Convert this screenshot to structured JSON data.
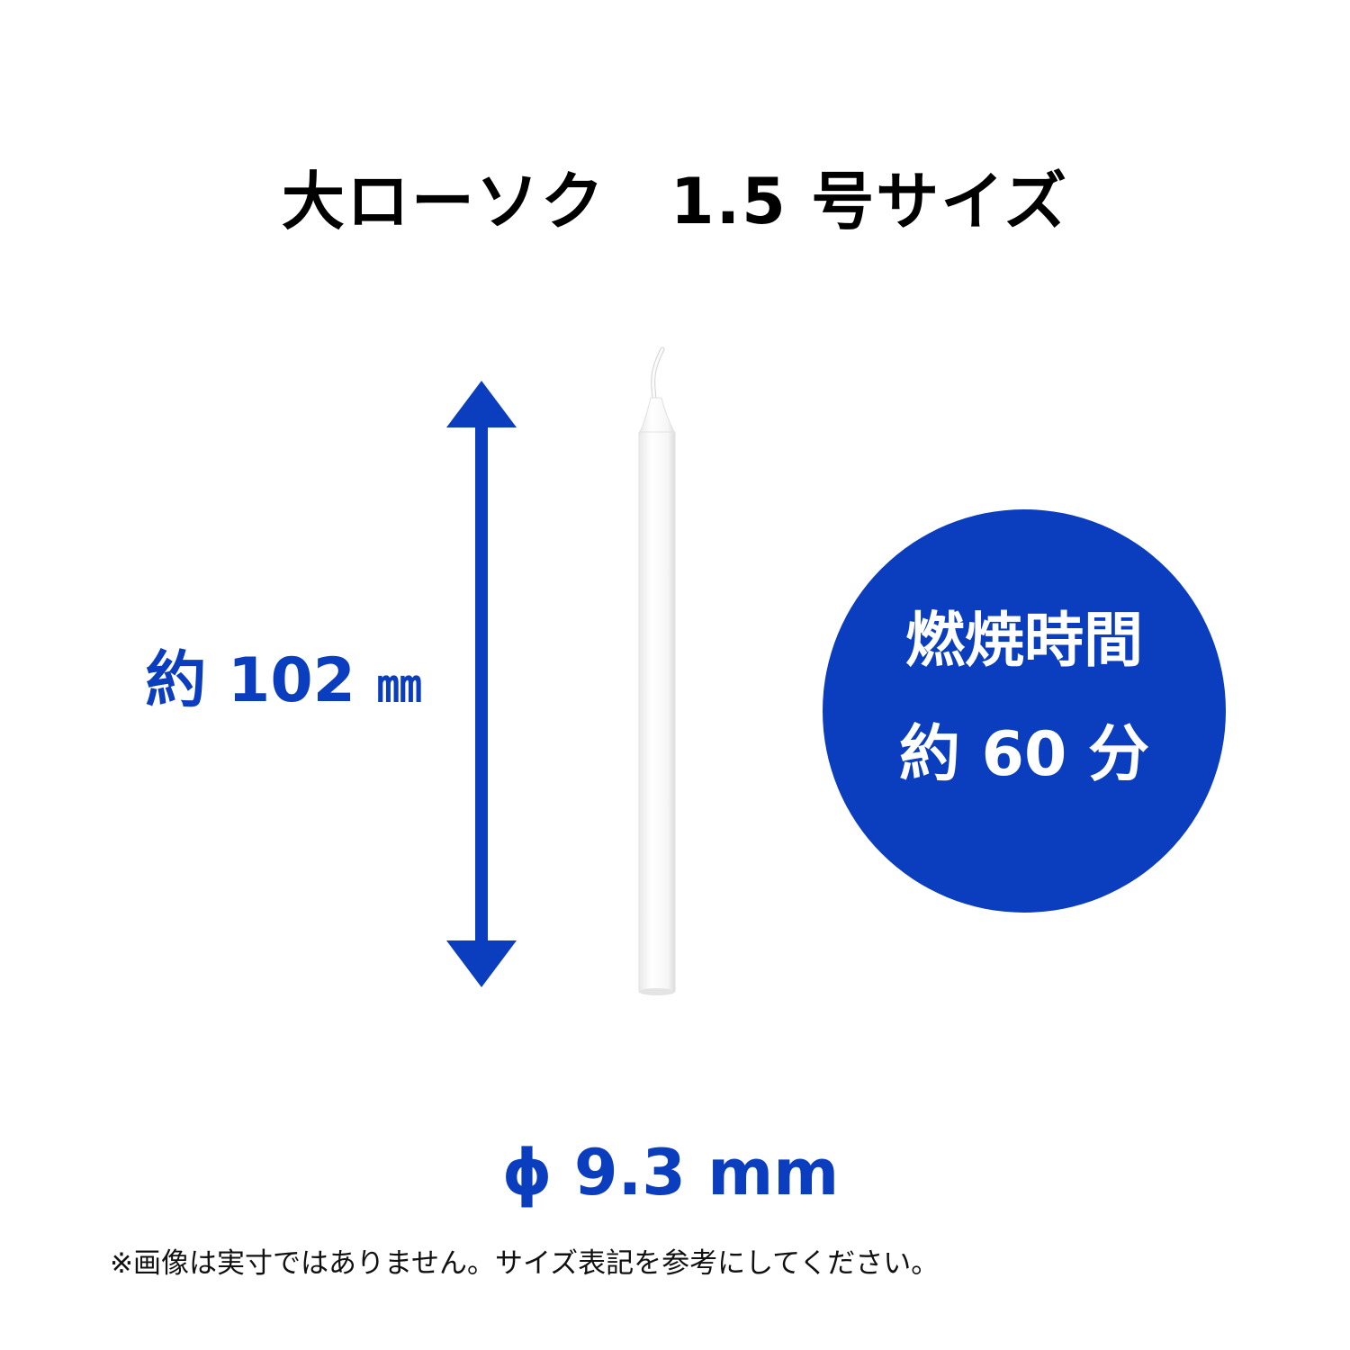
{
  "title": "大ローソク　1.5 号サイズ",
  "height": {
    "prefix": "約 102",
    "unit": "㎜"
  },
  "burn_badge": {
    "line1": "燃焼時間",
    "line2": "約 60 分"
  },
  "diameter": "ϕ 9.3 mm",
  "note": "※画像は実寸ではありません。サイズ表記を参考にしてください。",
  "colors": {
    "accent": "#0b3ebf",
    "title_text": "#000000",
    "badge_text": "#ffffff"
  },
  "icons": {
    "arrow": "double-headed-vertical-arrow",
    "product": "white-candle"
  }
}
